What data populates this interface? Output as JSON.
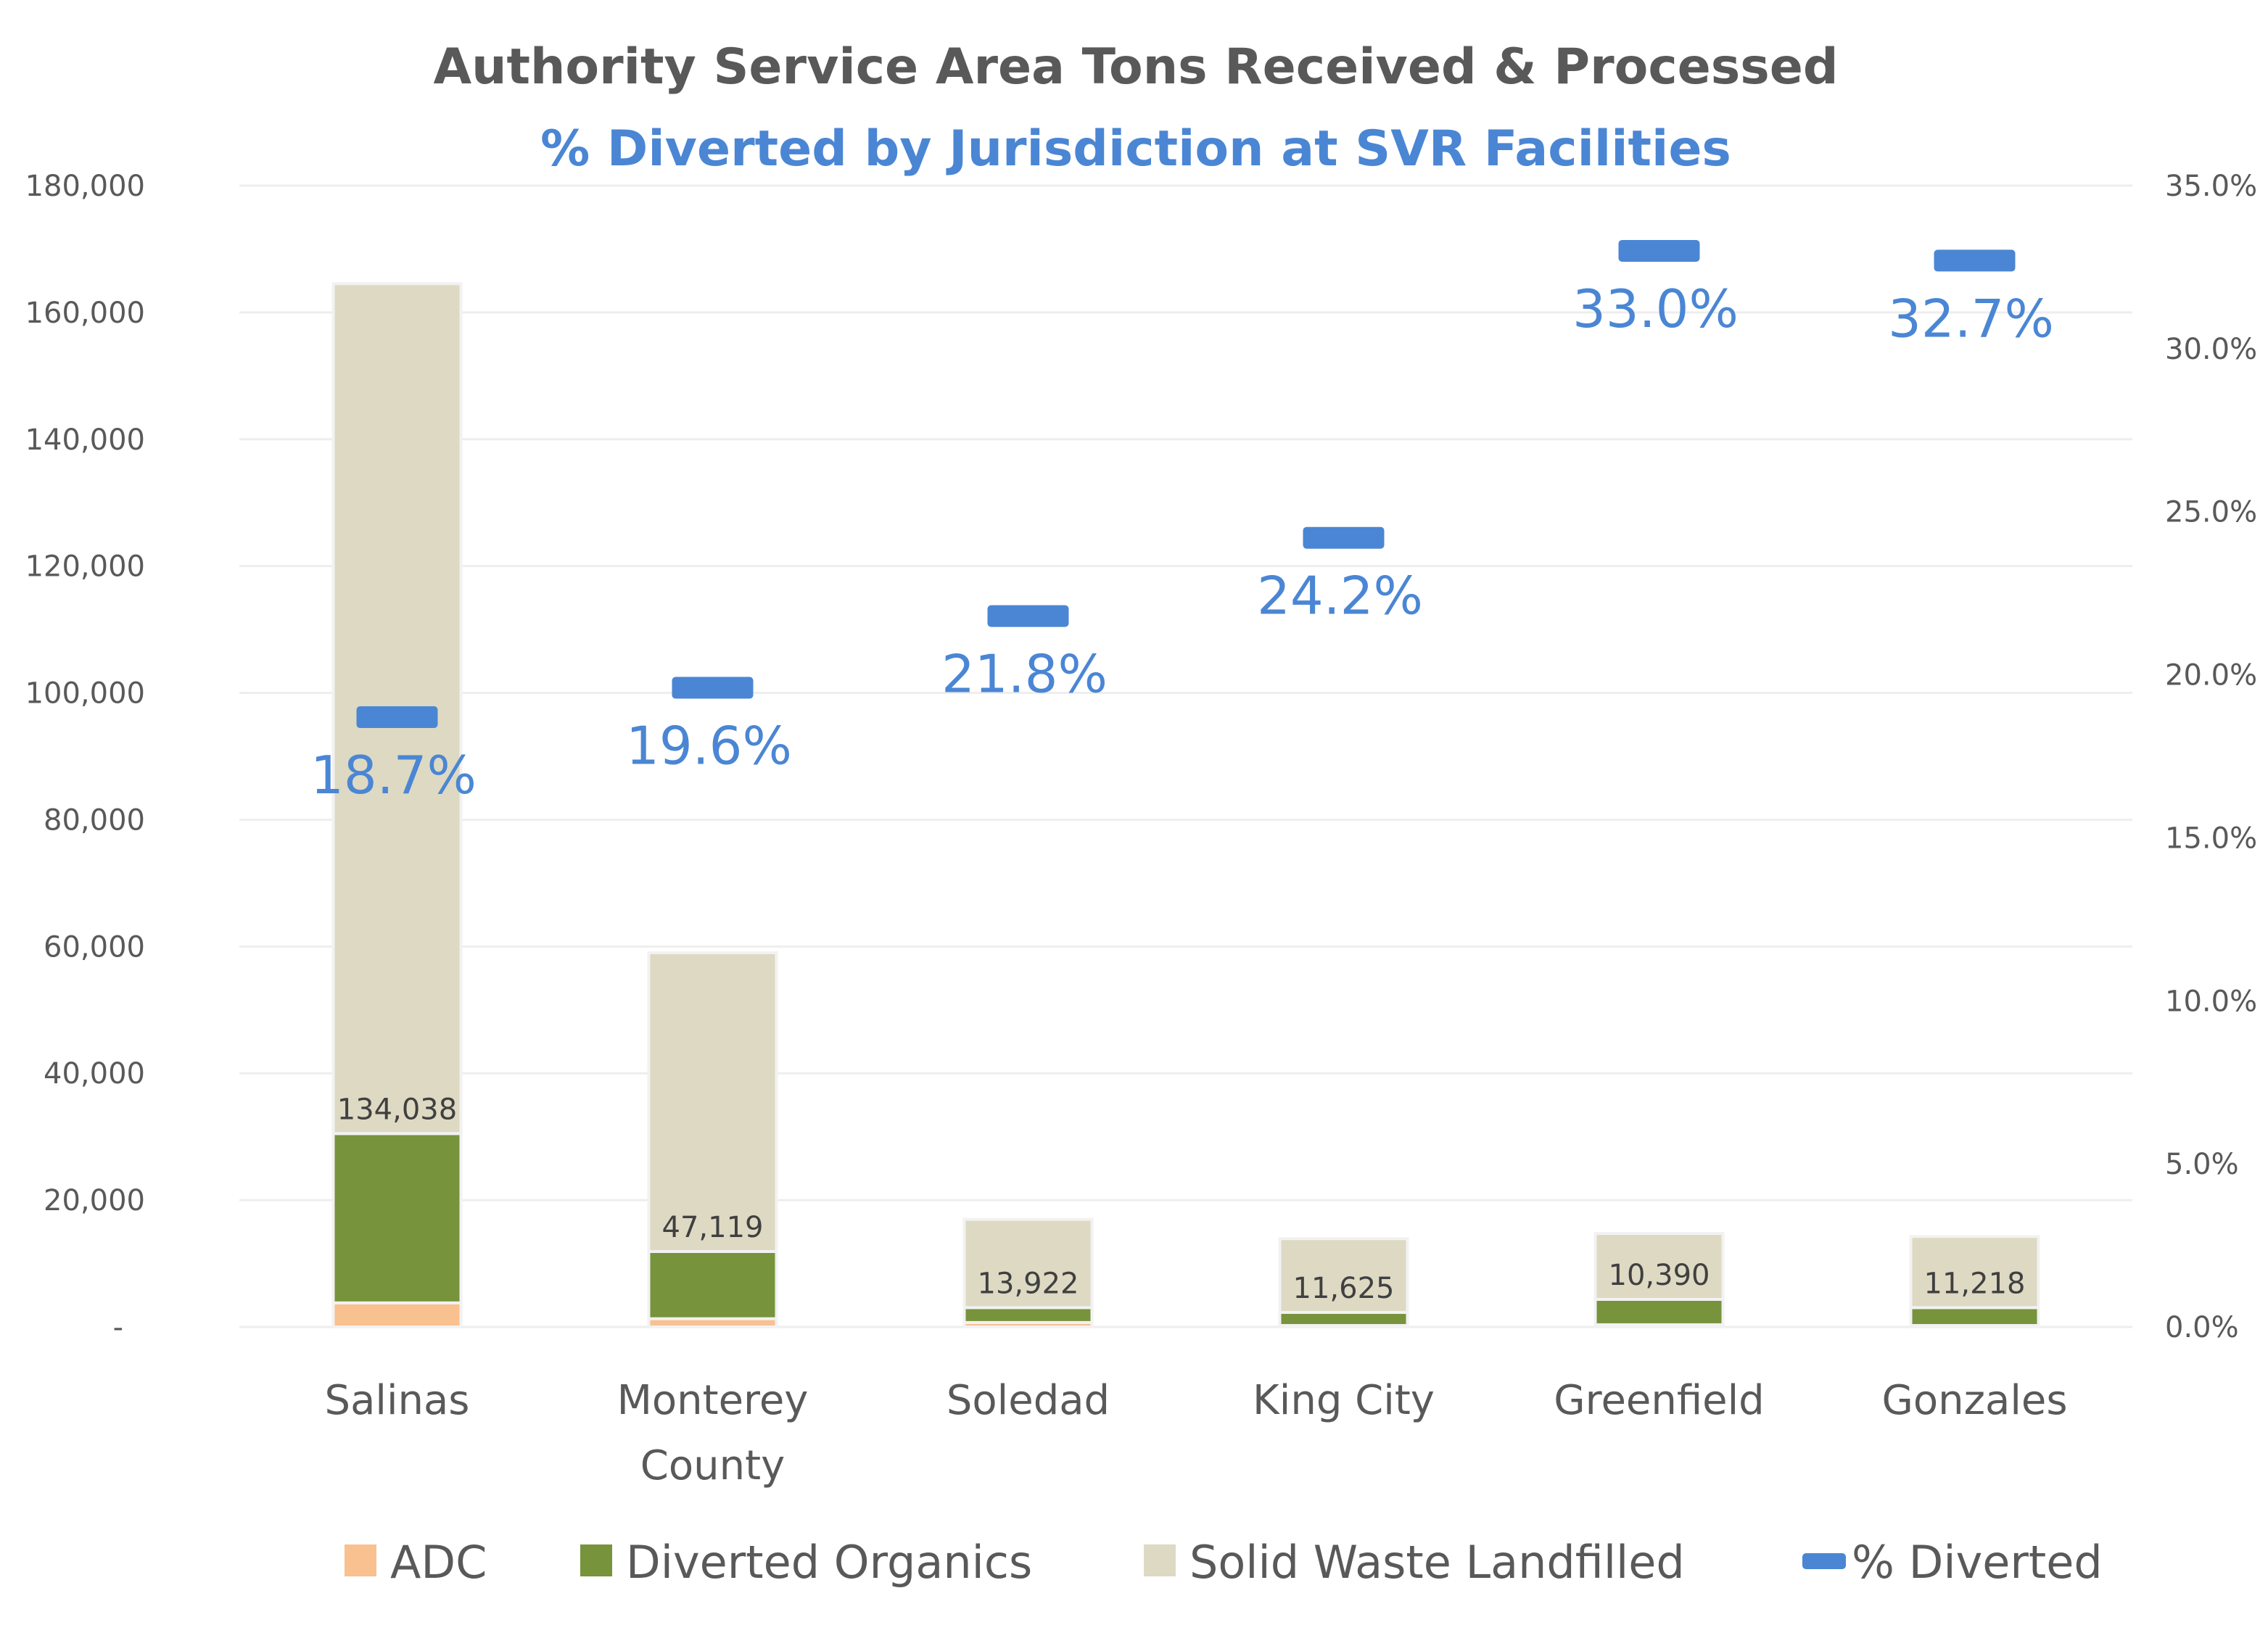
{
  "chart_data": {
    "type": "bar",
    "stacked": true,
    "title": "Authority Service Area Tons Received & Processed",
    "subtitle": "% Diverted by Jurisdiction at SVR Facilities",
    "categories": [
      [
        "Salinas"
      ],
      [
        "Monterey",
        "County"
      ],
      [
        "Soledad"
      ],
      [
        "King City"
      ],
      [
        "Greenfield"
      ],
      [
        "Gonzales"
      ]
    ],
    "series": [
      {
        "name": "ADC",
        "color": "#f9c090",
        "values": [
          3800,
          1300,
          700,
          230,
          350,
          230
        ]
      },
      {
        "name": "Diverted Organics",
        "color": "#77933c",
        "values": [
          26700,
          10600,
          2350,
          2070,
          4000,
          2820
        ]
      },
      {
        "name": "Solid Waste Landfilled",
        "color": "#ddd9c3",
        "values": [
          134038,
          47119,
          13922,
          11625,
          10390,
          11218
        ],
        "labels": [
          "134,038",
          "47,119",
          "13,922",
          "11,625",
          "10,390",
          "11,218"
        ]
      }
    ],
    "line_series": {
      "name": "% Diverted",
      "color": "#4a86d4",
      "axis": "right",
      "values": [
        18.7,
        19.6,
        21.8,
        24.2,
        33.0,
        32.7
      ],
      "labels": [
        "18.7%",
        "19.6%",
        "21.8%",
        "24.2%",
        "33.0%",
        "32.7%"
      ]
    },
    "ylim": [
      0,
      180000
    ],
    "y_ticks": [
      "-",
      "20,000",
      "40,000",
      "60,000",
      "80,000",
      "100,000",
      "120,000",
      "140,000",
      "160,000",
      "180,000"
    ],
    "y2lim": [
      0,
      35
    ],
    "y2_ticks": [
      "0.0%",
      "5.0%",
      "10.0%",
      "15.0%",
      "20.0%",
      "25.0%",
      "30.0%",
      "35.0%"
    ],
    "grid": true,
    "legend_position": "bottom"
  }
}
